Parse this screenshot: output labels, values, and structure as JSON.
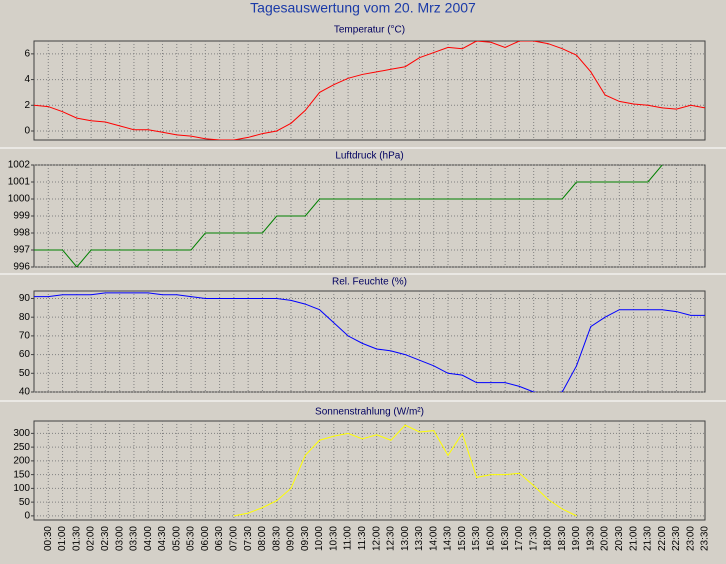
{
  "title": "Tagesauswertung vom 20. Mrz 2007",
  "chart_data": [
    {
      "type": "line",
      "title": "Temperatur (°C)",
      "ylim": [
        -0.7,
        7
      ],
      "yticks": [
        0,
        2,
        4,
        6
      ],
      "grid": true,
      "series": [
        {
          "color": "#ff0000",
          "values": [
            2.0,
            1.9,
            1.5,
            1.0,
            0.8,
            0.7,
            0.4,
            0.1,
            0.1,
            -0.1,
            -0.3,
            -0.4,
            -0.6,
            -0.7,
            -0.7,
            -0.5,
            -0.2,
            0.0,
            0.6,
            1.6,
            3.0,
            3.6,
            4.1,
            4.4,
            4.6,
            4.8,
            5.0,
            5.7,
            6.1,
            6.5,
            6.4,
            7.0,
            6.9,
            6.5,
            7.0,
            7.0,
            6.8,
            6.4,
            5.9,
            4.6,
            2.8,
            2.3,
            2.1,
            2.0,
            1.8,
            1.7,
            2.0,
            1.8
          ]
        }
      ]
    },
    {
      "type": "line",
      "title": "Luftdruck (hPa)",
      "ylim": [
        996,
        1002
      ],
      "yticks": [
        996,
        997,
        998,
        999,
        1000,
        1001,
        1002
      ],
      "grid": true,
      "series": [
        {
          "color": "#008000",
          "values": [
            997,
            997,
            997,
            996,
            997,
            997,
            997,
            997,
            997,
            997,
            997,
            997,
            998,
            998,
            998,
            998,
            998,
            999,
            999,
            999,
            1000,
            1000,
            1000,
            1000,
            1000,
            1000,
            1000,
            1000,
            1000,
            1000,
            1000,
            1000,
            1000,
            1000,
            1000,
            1000,
            1000,
            1000,
            1001,
            1001,
            1001,
            1001,
            1001,
            1001,
            1002,
            null,
            null,
            null
          ]
        }
      ]
    },
    {
      "type": "line",
      "title": "Rel. Feuchte (%)",
      "ylim": [
        40,
        94
      ],
      "yticks": [
        40,
        50,
        60,
        70,
        80,
        90
      ],
      "grid": true,
      "series": [
        {
          "color": "#0000ff",
          "values": [
            91,
            91,
            92,
            92,
            92,
            93,
            93,
            93,
            93,
            92,
            92,
            91,
            90,
            90,
            90,
            90,
            90,
            90,
            89,
            87,
            84,
            77,
            70,
            66,
            63,
            62,
            60,
            57,
            54,
            50,
            49,
            45,
            45,
            45,
            43,
            40,
            39,
            40,
            54,
            75,
            80,
            84,
            84,
            84,
            84,
            83,
            81,
            81
          ]
        }
      ]
    },
    {
      "type": "line",
      "title": "Sonnenstrahlung (W/m²)",
      "ylim": [
        -15,
        345
      ],
      "yticks": [
        0,
        50,
        100,
        150,
        200,
        250,
        300
      ],
      "grid": true,
      "categories": [
        null,
        "00:30",
        "01:00",
        "01:30",
        "02:00",
        "02:30",
        "03:00",
        "03:30",
        "04:00",
        "04:30",
        "05:00",
        "05:30",
        "06:00",
        "06:30",
        "07:00",
        "07:30",
        "08:00",
        "08:30",
        "09:00",
        "09:30",
        "10:00",
        "10:30",
        "11:00",
        "11:30",
        "12:00",
        "12:30",
        "13:00",
        "13:30",
        "14:00",
        "14:30",
        "15:00",
        "15:30",
        "16:00",
        "16:30",
        "17:00",
        "17:30",
        "18:00",
        "18:30",
        "19:00",
        "19:30",
        "20:00",
        "20:30",
        "21:00",
        "21:30",
        "22:00",
        "22:30",
        "23:00",
        "23:30"
      ],
      "series": [
        {
          "color": "#ffff00",
          "values": [
            null,
            null,
            null,
            null,
            null,
            null,
            null,
            null,
            null,
            null,
            null,
            null,
            null,
            null,
            0,
            10,
            30,
            55,
            100,
            220,
            275,
            290,
            300,
            280,
            295,
            275,
            330,
            305,
            310,
            220,
            300,
            140,
            150,
            150,
            155,
            110,
            60,
            25,
            0,
            null,
            null,
            null,
            null,
            null,
            null,
            null,
            null,
            null
          ]
        }
      ]
    }
  ]
}
